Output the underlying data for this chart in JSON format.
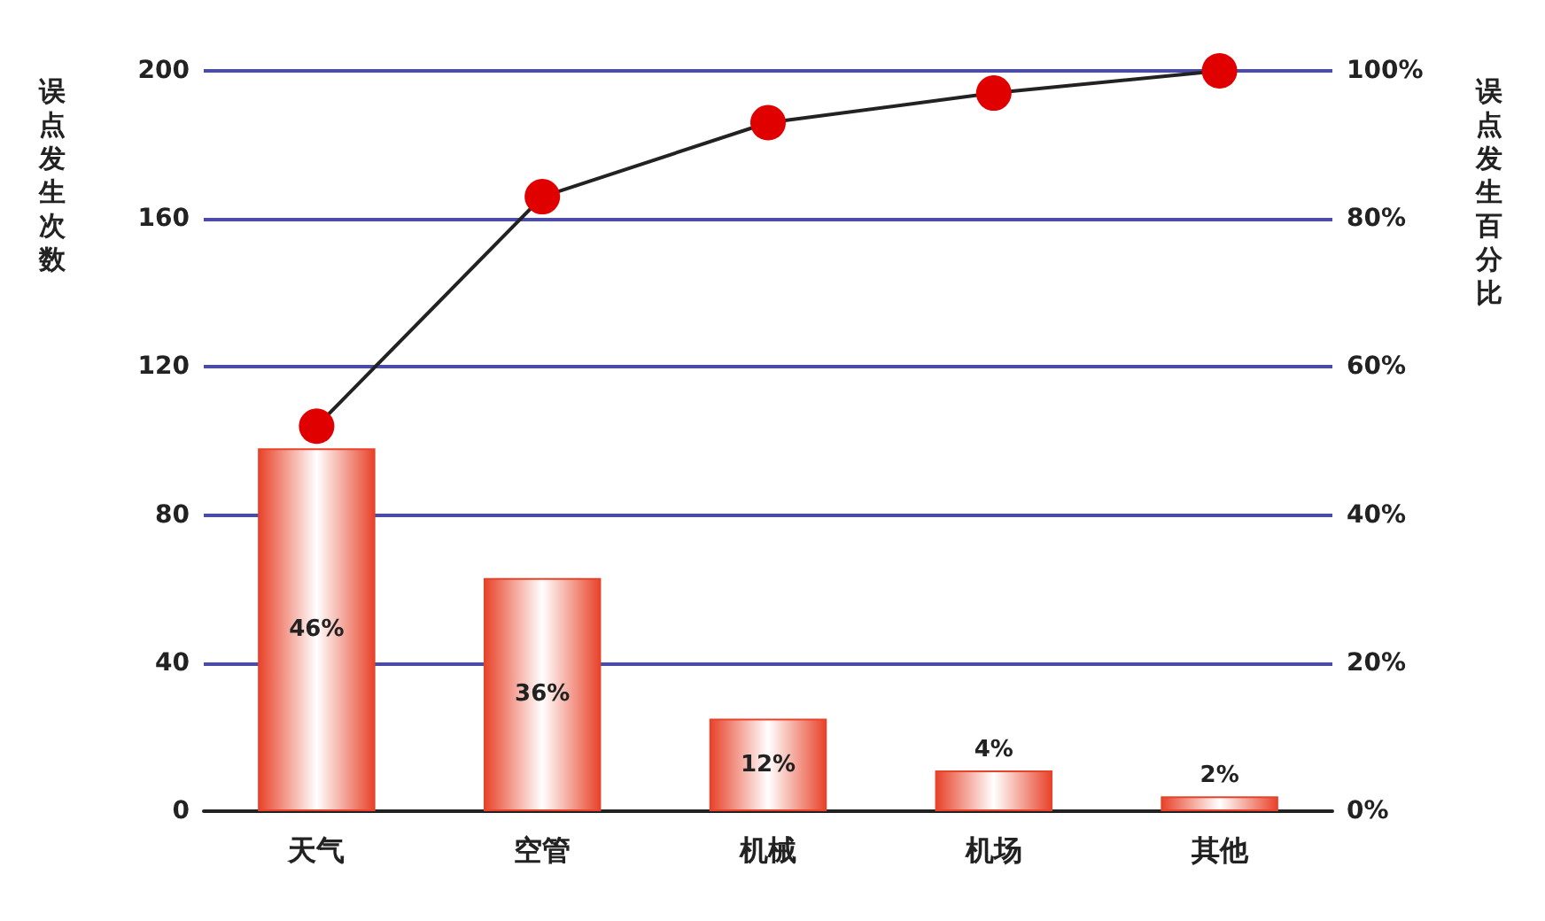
{
  "chart_data": {
    "type": "bar",
    "ylabel": "误点发生次数",
    "y2label": "误点发生百分比",
    "categories": [
      "天气",
      "空管",
      "机械",
      "机场",
      "其他"
    ],
    "series": [
      {
        "color": "#e8432a",
        "values": [
          98,
          63,
          25,
          11,
          4
        ]
      },
      {
        "type": "line",
        "axis": "y2",
        "color": "#e00000",
        "marker": "circle",
        "values": [
          52,
          83,
          93,
          97,
          100
        ]
      }
    ],
    "ylim": [
      0,
      200
    ],
    "yticks": [
      0,
      40,
      80,
      120,
      160,
      200
    ],
    "y2lim": [
      0,
      100
    ],
    "y2ticks": [
      {
        "value": 0,
        "label": "0%"
      },
      {
        "value": 20,
        "label": "20%"
      },
      {
        "value": 40,
        "label": "40%"
      },
      {
        "value": 60,
        "label": "60%"
      },
      {
        "value": 80,
        "label": "80%"
      },
      {
        "value": 100,
        "label": "100%"
      }
    ],
    "annotations": [
      "46%",
      "36%",
      "12%",
      "4%",
      "2%"
    ],
    "grid": "y"
  }
}
